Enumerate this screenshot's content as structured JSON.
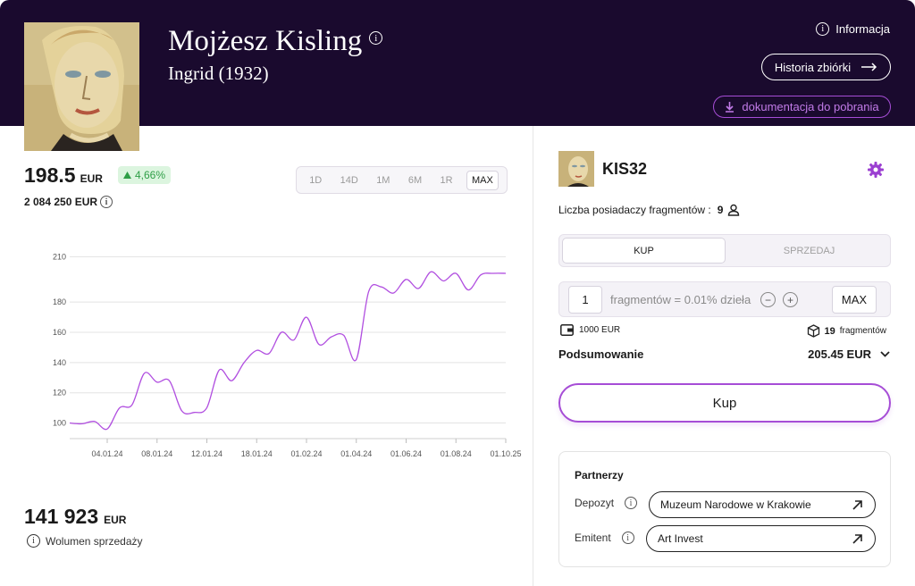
{
  "header": {
    "artist": "Mojżesz Kisling",
    "work": "Ingrid (1932)",
    "info_label": "Informacja",
    "history_label": "Historia zbiórki",
    "docs_label": "dokumentacja do pobrania"
  },
  "price": {
    "value": "198.5",
    "currency": "EUR",
    "change": "4,66%",
    "total": "2 084 250 EUR"
  },
  "ranges": [
    "1D",
    "14D",
    "1M",
    "6M",
    "1R",
    "MAX"
  ],
  "active_range": "MAX",
  "chart_data": {
    "type": "line",
    "x_ticks": [
      "04.01.24",
      "08.01.24",
      "12.01.24",
      "18.01.24",
      "01.02.24",
      "01.04.24",
      "01.06.24",
      "01.08.24",
      "01.10.25"
    ],
    "y_ticks": [
      100,
      120,
      140,
      160,
      180,
      210
    ],
    "ylim": [
      95,
      212
    ],
    "line_color": "#b14fe0",
    "values": [
      100,
      99.5,
      101,
      96,
      110,
      112,
      133,
      127,
      128,
      108,
      107,
      110,
      135,
      128,
      140,
      148,
      146,
      160,
      155,
      170,
      152,
      157,
      158,
      142,
      187,
      190,
      186,
      195,
      189,
      200,
      194,
      199,
      188,
      198,
      199,
      199
    ]
  },
  "volume": {
    "value": "141 923",
    "currency": "EUR",
    "label": "Wolumen sprzedaży"
  },
  "trade": {
    "code": "KIS32",
    "holders_label": "Liczba posiadaczy fragmentów :",
    "holders_count": "9",
    "tab_buy": "KUP",
    "tab_sell": "SPRZEDAJ",
    "quantity": "1",
    "quantity_text": "fragmentów = 0.01% dzieła",
    "minus": "−",
    "plus": "+",
    "max_label": "MAX",
    "wallet": "1000 EUR",
    "fragments_count": "19",
    "fragments_label": "fragmentów",
    "summary_label": "Podsumowanie",
    "summary_value": "205.45 EUR",
    "buy_button": "Kup"
  },
  "partners": {
    "title": "Partnerzy",
    "depozyt_label": "Depozyt",
    "depozyt_value": "Muzeum Narodowe w Krakowie",
    "emitent_label": "Emitent",
    "emitent_value": "Art Invest"
  },
  "colors": {
    "header_bg": "#1a0a2e",
    "accent": "#a64dd6",
    "positive": "#2e9e46"
  }
}
